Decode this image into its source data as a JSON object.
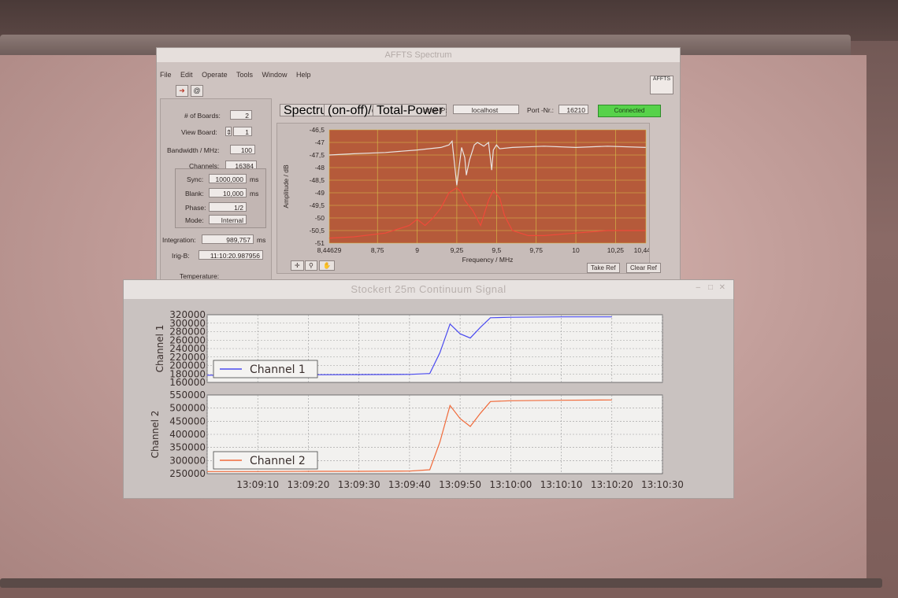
{
  "app1": {
    "title": "AFFTS Spectrum",
    "menu": [
      "File",
      "Edit",
      "Operate",
      "Tools",
      "Window",
      "Help"
    ],
    "afft_logo": "AFFTS",
    "left_panel": {
      "boards_label": "# of Boards:",
      "boards_value": "2",
      "view_board_label": "View Board:",
      "view_board_value": "1",
      "bandwidth_label": "Bandwidth / MHz:",
      "bandwidth_value": "100",
      "channels_label": "Channels:",
      "channels_value": "16384",
      "sync_label": "Sync:",
      "sync_value": "1000,000",
      "sync_unit": "ms",
      "blank_label": "Blank:",
      "blank_value": "10,000",
      "blank_unit": "ms",
      "phase_label": "Phase:",
      "phase_value": "1/2",
      "mode_label": "Mode:",
      "mode_value": "Internal",
      "integration_label": "Integration:",
      "integration_value": "989,757",
      "integration_unit": "ms",
      "irig_label": "Irig-B:",
      "irig_value": "11:10:20.987956",
      "temperature_label": "Temperature:"
    },
    "tabs": [
      "Spectrum",
      "(on-off)/off",
      "Total-Power"
    ],
    "host_ip_label": "Host-IP:",
    "host_ip_value": "localhost",
    "port_label": "Port -Nr.:",
    "port_value": "16210",
    "status": "Connected",
    "take_ref": "Take Ref",
    "clear_ref": "Clear Ref",
    "colors": {
      "plot_bg": "#b55a3a",
      "grid": "#d8c24a",
      "status_green": "#57d24a",
      "trace_on": "#e8e4e2",
      "trace_off": "#ef4a3a"
    }
  },
  "chart_data": [
    {
      "type": "line",
      "xlabel": "Frequency / MHz",
      "ylabel": "Amplitude / dB",
      "xlim": [
        8.44629,
        10.4416
      ],
      "ylim": [
        -51,
        -46.5
      ],
      "x_ticks": [
        "8,44629",
        "8,75",
        "9",
        "9,25",
        "9,5",
        "9,75",
        "10",
        "10,25",
        "10,4416"
      ],
      "y_ticks": [
        "-46,5",
        "-47",
        "-47,5",
        "-48",
        "-48,5",
        "-49",
        "-49,5",
        "-50",
        "-50,5",
        "-51"
      ],
      "grid": true,
      "series": [
        {
          "color": "#e8e4e2",
          "x": [
            8.446,
            8.6,
            8.8,
            9.0,
            9.15,
            9.2,
            9.22,
            9.25,
            9.28,
            9.3,
            9.31,
            9.33,
            9.36,
            9.38,
            9.42,
            9.45,
            9.47,
            9.48,
            9.5,
            9.52,
            9.6,
            9.8,
            10.0,
            10.2,
            10.44
          ],
          "y": [
            -47.5,
            -47.45,
            -47.4,
            -47.3,
            -47.2,
            -47.1,
            -46.95,
            -48.7,
            -47.2,
            -47.6,
            -48.3,
            -47.7,
            -47.1,
            -47.0,
            -47.15,
            -47.0,
            -48.1,
            -47.3,
            -47.1,
            -47.25,
            -47.2,
            -47.15,
            -47.2,
            -47.15,
            -47.2
          ]
        },
        {
          "color": "#ef4a3a",
          "x": [
            8.446,
            8.6,
            8.8,
            8.95,
            9.0,
            9.05,
            9.1,
            9.15,
            9.2,
            9.25,
            9.28,
            9.3,
            9.35,
            9.4,
            9.45,
            9.48,
            9.52,
            9.55,
            9.6,
            9.7,
            9.8,
            10.0,
            10.2,
            10.44
          ],
          "y": [
            -50.8,
            -50.75,
            -50.6,
            -50.3,
            -50.05,
            -50.3,
            -50.0,
            -49.6,
            -49.0,
            -48.8,
            -49.0,
            -49.3,
            -49.7,
            -50.3,
            -49.3,
            -48.9,
            -49.2,
            -49.9,
            -50.5,
            -50.7,
            -50.7,
            -50.6,
            -50.5,
            -50.5
          ]
        }
      ]
    },
    {
      "type": "line",
      "ylabel": "Channel 1",
      "ylim": [
        160000,
        320000
      ],
      "y_ticks": [
        "320000",
        "300000",
        "280000",
        "260000",
        "240000",
        "220000",
        "200000",
        "180000",
        "160000"
      ],
      "grid": true,
      "legend": "bottom-left",
      "series": [
        {
          "name": "Channel 1",
          "color": "#4a4af0",
          "x": [
            "13:09:00",
            "13:09:10",
            "13:09:20",
            "13:09:30",
            "13:09:40",
            "13:09:44",
            "13:09:46",
            "13:09:48",
            "13:09:50",
            "13:09:52",
            "13:09:54",
            "13:09:56",
            "13:10:00",
            "13:10:10",
            "13:10:20"
          ],
          "y": [
            177000,
            178000,
            178000,
            178500,
            179000,
            181000,
            230000,
            298000,
            275000,
            265000,
            290000,
            313000,
            314000,
            315000,
            315000
          ]
        }
      ]
    },
    {
      "type": "line",
      "xlabel": "",
      "ylabel": "Channel 2",
      "ylim": [
        250000,
        550000
      ],
      "y_ticks": [
        "550000",
        "500000",
        "450000",
        "400000",
        "350000",
        "300000",
        "250000"
      ],
      "x_ticks": [
        "13:09:10",
        "13:09:20",
        "13:09:30",
        "13:09:40",
        "13:09:50",
        "13:10:00",
        "13:10:10",
        "13:10:20",
        "13:10:30"
      ],
      "grid": true,
      "legend": "bottom-left",
      "series": [
        {
          "name": "Channel 2",
          "color": "#f06a3a",
          "x": [
            "13:09:00",
            "13:09:10",
            "13:09:20",
            "13:09:30",
            "13:09:40",
            "13:09:44",
            "13:09:46",
            "13:09:48",
            "13:09:50",
            "13:09:52",
            "13:09:54",
            "13:09:56",
            "13:10:00",
            "13:10:10",
            "13:10:20"
          ],
          "y": [
            258000,
            258000,
            259000,
            259000,
            260000,
            265000,
            370000,
            510000,
            460000,
            430000,
            480000,
            525000,
            528000,
            530000,
            531000
          ]
        }
      ]
    }
  ],
  "app2": {
    "title": "Stockert 25m Continuum Signal"
  }
}
